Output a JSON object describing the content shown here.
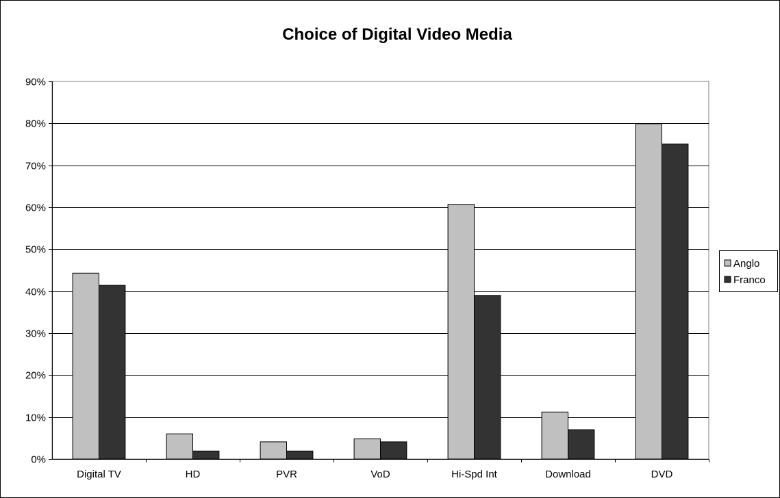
{
  "chart_data": {
    "type": "bar",
    "title": "Choice of Digital Video Media",
    "xlabel": "",
    "ylabel": "",
    "categories": [
      "Digital TV",
      "HD",
      "PVR",
      "VoD",
      "Hi-Spd Int",
      "Download",
      "DVD"
    ],
    "series": [
      {
        "name": "Anglo",
        "color": "#c0c0c0",
        "values": [
          0.443,
          0.06,
          0.041,
          0.048,
          0.607,
          0.112,
          0.799
        ]
      },
      {
        "name": "Franco",
        "color": "#333333",
        "values": [
          0.414,
          0.019,
          0.019,
          0.041,
          0.39,
          0.07,
          0.751
        ]
      }
    ],
    "ylim": [
      0,
      0.9
    ],
    "y_ticks": [
      "0%",
      "10%",
      "20%",
      "30%",
      "40%",
      "50%",
      "60%",
      "70%",
      "80%",
      "90%"
    ],
    "y_format": "percent",
    "grid": true,
    "legend_position": "right",
    "plot_background": "#ffffff"
  }
}
